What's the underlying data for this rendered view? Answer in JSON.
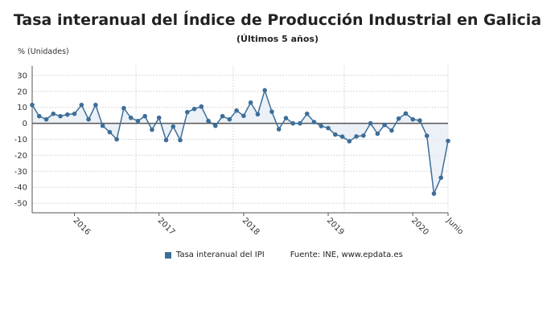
{
  "title": "Tasa interanual del Índice de Producción Industrial en Galicia",
  "subtitle": "(Últimos 5 años)",
  "unit_label": "% (Unidades)",
  "source": "Fuente: INE, www.epdata.es",
  "colors": {
    "series": "#3d6e99",
    "fill": "#e6eef5",
    "zero_line": "#555555"
  },
  "chart_data": {
    "type": "line",
    "title": "Tasa interanual del Índice de Producción Industrial en Galicia",
    "ylabel": "% (Unidades)",
    "ylim": [
      -56,
      36
    ],
    "yticks": [
      30,
      20,
      10,
      0,
      -10,
      -20,
      -30,
      -40,
      -50
    ],
    "x_start": "2015-07",
    "x_end": "2020-06",
    "xtick_labels": [
      {
        "label": "2016",
        "index": 6
      },
      {
        "label": "2017",
        "index": 18
      },
      {
        "label": "2018",
        "index": 30
      },
      {
        "label": "2019",
        "index": 42
      },
      {
        "label": "2020",
        "index": 54
      },
      {
        "label": "Junio",
        "index": 59
      }
    ],
    "grid": true,
    "legend_placement": "bottom",
    "series": [
      {
        "name": "Tasa interanual del IPI",
        "values": [
          11.5,
          4.5,
          2.5,
          6,
          4.5,
          5.5,
          6,
          11.5,
          2.5,
          11.5,
          -1.5,
          -5.5,
          -10,
          9.5,
          3.5,
          1.5,
          4.5,
          -4,
          3.5,
          -10.5,
          -2,
          -10.5,
          7,
          9,
          10.5,
          1.5,
          -1.5,
          4.5,
          2.5,
          8,
          4.7,
          13,
          5.7,
          20.7,
          7.3,
          -3.7,
          3.3,
          0,
          0,
          6,
          0.8,
          -1.7,
          -3,
          -7,
          -8.3,
          -11.2,
          -8.2,
          -7.7,
          0,
          -6.5,
          -1,
          -4.5,
          3,
          6.2,
          2.5,
          1.8,
          -7.8,
          -44,
          -34,
          -11
        ]
      }
    ]
  }
}
